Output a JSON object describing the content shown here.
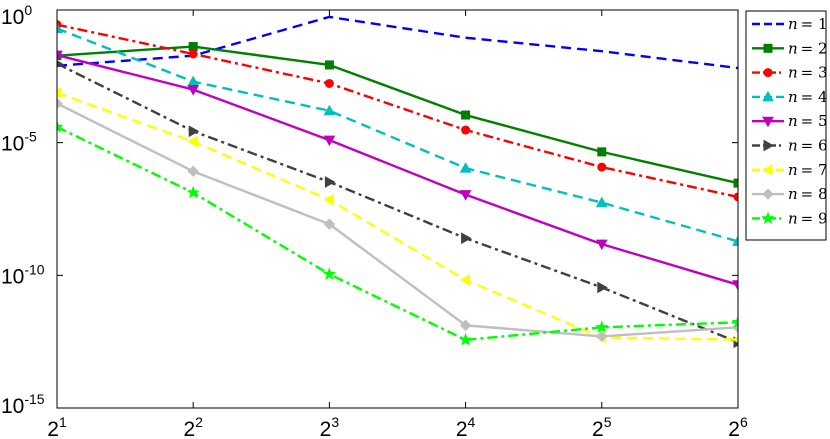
{
  "chart_data": {
    "type": "line",
    "title": "",
    "xlabel": "",
    "ylabel": "",
    "xscale": "log2",
    "yscale": "log10",
    "x": [
      2,
      4,
      8,
      16,
      32,
      64
    ],
    "xticks": [
      {
        "base": "2",
        "exp": "1"
      },
      {
        "base": "2",
        "exp": "2"
      },
      {
        "base": "2",
        "exp": "3"
      },
      {
        "base": "2",
        "exp": "4"
      },
      {
        "base": "2",
        "exp": "5"
      },
      {
        "base": "2",
        "exp": "6"
      }
    ],
    "ylim": [
      1e-15,
      1
    ],
    "yticks": [
      {
        "value": 1,
        "base": "10",
        "exp": "0"
      },
      {
        "value": 1e-05,
        "base": "10",
        "exp": "-5"
      },
      {
        "value": 1e-10,
        "base": "10",
        "exp": "-10"
      },
      {
        "value": 1e-15,
        "base": "10",
        "exp": "-15"
      }
    ],
    "grid": false,
    "legend_position": "outside-right-top",
    "series": [
      {
        "name": "n = 1",
        "n_label": "n",
        "eq": "= 1",
        "color": "#0000ff",
        "dash": "dashed",
        "marker": "none",
        "values": [
          0.0079,
          0.019,
          0.55,
          0.09,
          0.028,
          0.0065
        ]
      },
      {
        "name": "n = 2",
        "n_label": "n",
        "eq": "= 2",
        "color": "#007f00",
        "dash": "solid",
        "marker": "square",
        "values": [
          0.019,
          0.042,
          0.0085,
          0.00011,
          4.5e-06,
          3e-07
        ]
      },
      {
        "name": "n = 3",
        "n_label": "n",
        "eq": "= 3",
        "color": "#ff0000",
        "dash": "dashdot",
        "marker": "circle",
        "values": [
          0.28,
          0.022,
          0.0017,
          3e-05,
          1.2e-06,
          9e-08
        ]
      },
      {
        "name": "n = 4",
        "n_label": "n",
        "eq": "= 4",
        "color": "#00bfbf",
        "dash": "dashed",
        "marker": "triangle-up",
        "values": [
          0.2,
          0.002,
          0.00016,
          1.1e-06,
          5.5e-08,
          1.9e-09
        ]
      },
      {
        "name": "n = 5",
        "n_label": "n",
        "eq": "= 5",
        "color": "#bf00bf",
        "dash": "solid",
        "marker": "triangle-down",
        "values": [
          0.02,
          0.001,
          1.25e-05,
          1.1e-07,
          1.5e-09,
          4.4e-11
        ]
      },
      {
        "name": "n = 6",
        "n_label": "n",
        "eq": "= 6",
        "color": "#404040",
        "dash": "dashdot",
        "marker": "triangle-right",
        "values": [
          0.0095,
          2.7e-05,
          3.3e-07,
          2.5e-09,
          3.5e-11,
          3e-13
        ]
      },
      {
        "name": "n = 7",
        "n_label": "n",
        "eq": "= 7",
        "color": "#ffff00",
        "dash": "dashed",
        "marker": "triangle-left",
        "values": [
          0.00075,
          1.1e-05,
          7e-08,
          6.7e-11,
          4.5e-13,
          3.8e-13
        ]
      },
      {
        "name": "n = 8",
        "n_label": "n",
        "eq": "= 8",
        "color": "#bfbfbf",
        "dash": "solid",
        "marker": "diamond",
        "values": [
          0.0003,
          8.3e-07,
          8.5e-09,
          1.3e-12,
          5e-13,
          1.1e-12
        ]
      },
      {
        "name": "n = 9",
        "n_label": "n",
        "eq": "= 9",
        "color": "#00ff00",
        "dash": "dashdot",
        "marker": "star",
        "values": [
          3.9e-05,
          1.3e-07,
          1.1e-10,
          3.7e-13,
          1.1e-12,
          1.7e-12
        ]
      }
    ]
  }
}
